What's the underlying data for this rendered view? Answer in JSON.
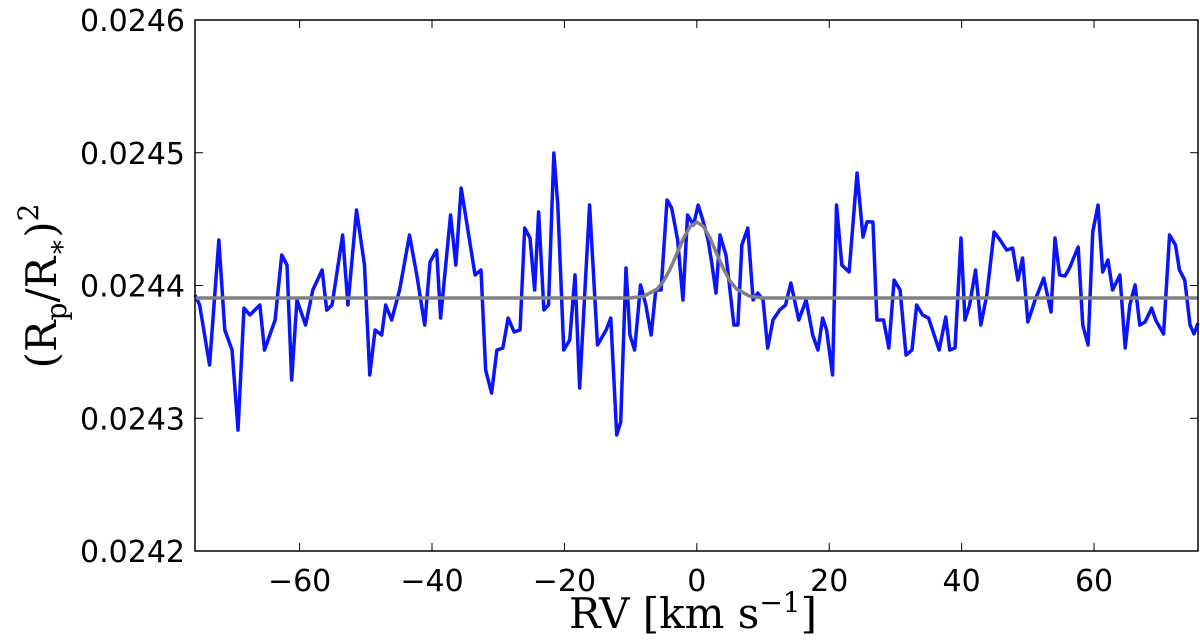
{
  "chart_data": {
    "type": "line",
    "xlabel_parts": [
      "RV [km s",
      "−1",
      "]"
    ],
    "ylabel_parts": [
      "(R",
      "p",
      "/R",
      "∗",
      ")",
      "2"
    ],
    "xlim": [
      -75.8,
      75.7
    ],
    "xticks": [
      {
        "value": -60,
        "label": "−60"
      },
      {
        "value": -40,
        "label": "−40"
      },
      {
        "value": -20,
        "label": "−20"
      },
      0,
      20,
      40,
      60
    ],
    "ylim": [
      0.0242,
      0.0246
    ],
    "yticks": [
      0.0242,
      0.0243,
      0.0244,
      0.0245,
      0.0246
    ],
    "series": [
      {
        "color": "#0a14ff",
        "x": [
          -75.8,
          -75.1,
          -73.6,
          -72.2,
          -71.3,
          -70.2,
          -69.3,
          -68.4,
          -67.5,
          -66.0,
          -65.3,
          -63.7,
          -62.7,
          -61.9,
          -61.2,
          -60.4,
          -59.1,
          -58.0,
          -56.6,
          -55.9,
          -55.1,
          -53.5,
          -52.7,
          -51.4,
          -50.2,
          -49.4,
          -48.6,
          -47.6,
          -47.0,
          -46.1,
          -44.9,
          -43.4,
          -42.3,
          -41.1,
          -40.3,
          -39.3,
          -38.7,
          -37.2,
          -36.4,
          -35.6,
          -34.7,
          -33.5,
          -32.6,
          -31.9,
          -31.0,
          -30.2,
          -29.3,
          -28.5,
          -27.6,
          -26.7,
          -26.0,
          -25.2,
          -24.5,
          -23.9,
          -23.1,
          -22.4,
          -21.6,
          -21.0,
          -20.1,
          -19.2,
          -18.4,
          -17.7,
          -16.9,
          -16.2,
          -15.0,
          -13.7,
          -13.0,
          -12.1,
          -11.5,
          -10.7,
          -10.1,
          -9.4,
          -8.5,
          -7.7,
          -6.9,
          -6.2,
          -5.4,
          -4.5,
          -3.8,
          -2.9,
          -2.1,
          -1.4,
          -0.5,
          0.2,
          0.9,
          1.7,
          2.3,
          2.9,
          3.5,
          4.4,
          5.6,
          6.2,
          6.8,
          7.7,
          8.5,
          9.2,
          10.0,
          10.7,
          11.5,
          12.5,
          13.4,
          14.2,
          15.4,
          16.5,
          17.5,
          18.3,
          19.0,
          19.6,
          20.5,
          21.1,
          21.9,
          23.0,
          24.2,
          25.1,
          25.7,
          26.6,
          27.2,
          28.2,
          29.0,
          29.8,
          30.7,
          31.6,
          32.5,
          33.2,
          34.1,
          35.0,
          36.6,
          37.6,
          38.2,
          39.0,
          39.9,
          40.5,
          41.2,
          42.1,
          42.9,
          43.8,
          44.9,
          45.8,
          46.8,
          47.7,
          48.5,
          49.2,
          50.0,
          51.1,
          52.4,
          53.5,
          54.1,
          54.8,
          55.6,
          56.3,
          57.6,
          58.3,
          59.1,
          59.8,
          60.6,
          61.3,
          62.1,
          62.8,
          63.9,
          64.7,
          65.4,
          66.2,
          66.9,
          67.7,
          68.7,
          69.3,
          70.5,
          71.4,
          72.3,
          72.9,
          73.7,
          74.5,
          75.1,
          75.7
        ],
        "values": [
          0.0243928,
          0.0243853,
          0.0243401,
          0.0244343,
          0.0243665,
          0.0243514,
          0.0242911,
          0.024383,
          0.0243778,
          0.0243853,
          0.0243514,
          0.024374,
          0.024423,
          0.0244154,
          0.0243288,
          0.0243891,
          0.0243702,
          0.0243966,
          0.0244117,
          0.0243815,
          0.0243853,
          0.024438,
          0.0243853,
          0.0244569,
          0.0244154,
          0.0243326,
          0.0243665,
          0.0243627,
          0.0243853,
          0.024374,
          0.0243966,
          0.024438,
          0.0244079,
          0.0243702,
          0.0244177,
          0.0244267,
          0.0243755,
          0.0244531,
          0.0244154,
          0.0244734,
          0.0244456,
          0.0244079,
          0.0244117,
          0.0243363,
          0.024319,
          0.0243514,
          0.0243529,
          0.0243755,
          0.024365,
          0.0243665,
          0.0244433,
          0.0244358,
          0.0243966,
          0.0244554,
          0.0243815,
          0.0243853,
          0.0244998,
          0.0244606,
          0.0243514,
          0.0243589,
          0.0244079,
          0.0243228,
          0.0243966,
          0.0244606,
          0.0243552,
          0.0243665,
          0.0243755,
          0.0242874,
          0.0242972,
          0.0244132,
          0.0243627,
          0.0243514,
          0.0244004,
          0.0243853,
          0.0243627,
          0.0243966,
          0.0243966,
          0.0244644,
          0.0244584,
          0.0244343,
          0.0243891,
          0.0244531,
          0.0244456,
          0.0244606,
          0.0244493,
          0.0244343,
          0.0244154,
          0.0243943,
          0.024438,
          0.024423,
          0.0243702,
          0.0243702,
          0.0244305,
          0.0244433,
          0.0243891,
          0.0243943,
          0.0243891,
          0.0243529,
          0.024374,
          0.0243815,
          0.0243853,
          0.0244019,
          0.024374,
          0.0243891,
          0.0243627,
          0.0243514,
          0.0243755,
          0.0243665,
          0.0243326,
          0.0244606,
          0.0244154,
          0.0244102,
          0.0244847,
          0.0244365,
          0.024448,
          0.0244478,
          0.024374,
          0.024374,
          0.0243529,
          0.0244041,
          0.0243966,
          0.0243476,
          0.0243514,
          0.0243853,
          0.0243778,
          0.0243755,
          0.0243514,
          0.0243763,
          0.0243514,
          0.0243529,
          0.0244358,
          0.024374,
          0.0243853,
          0.0244117,
          0.0243702,
          0.0243928,
          0.0244403,
          0.0244343,
          0.0244267,
          0.0244282,
          0.0244041,
          0.0244207,
          0.0243725,
          0.0243891,
          0.0244056,
          0.02438,
          0.0244358,
          0.0244079,
          0.0244071,
          0.0244132,
          0.024429,
          0.0243702,
          0.0243552,
          0.0244403,
          0.0244606,
          0.0244102,
          0.0244192,
          0.0243966,
          0.0244079,
          0.0243529,
          0.0243853,
          0.0244004,
          0.0243702,
          0.0243725,
          0.024383,
          0.024374,
          0.0243635,
          0.024438,
          0.0244305,
          0.0244117,
          0.0244041,
          0.0243702,
          0.0243635,
          0.0243717
        ]
      },
      {
        "color": "#808080",
        "x": [
          -75.8,
          -12,
          -10,
          -8,
          -6,
          -5,
          -4,
          -3,
          -2,
          -1,
          0,
          1,
          2,
          3,
          4,
          5,
          6,
          8,
          10,
          12,
          75.7
        ],
        "values": [
          0.0243906,
          0.0243906,
          0.0243906,
          0.0243919,
          0.0243973,
          0.0244035,
          0.0244127,
          0.0244241,
          0.0244357,
          0.0244445,
          0.0244478,
          0.0244445,
          0.0244357,
          0.0244241,
          0.0244127,
          0.0244035,
          0.0243973,
          0.0243919,
          0.0243906,
          0.0243906,
          0.0243906
        ]
      }
    ]
  }
}
